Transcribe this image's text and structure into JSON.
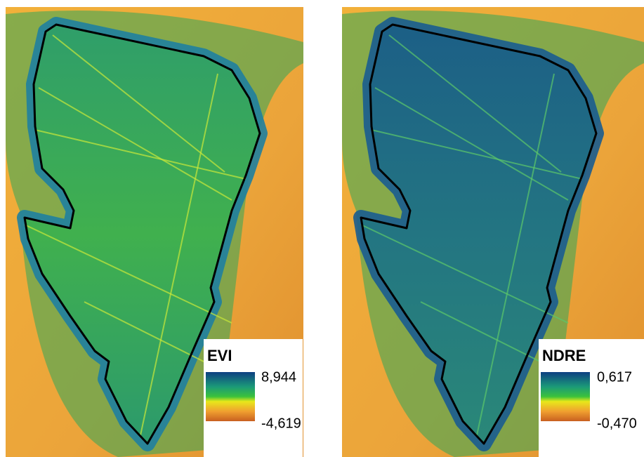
{
  "panels": [
    {
      "legend_title": "EVI",
      "legend_max": "8,944",
      "legend_min": "-4,619"
    },
    {
      "legend_title": "NDRE",
      "legend_max": "0,617",
      "legend_min": "-0,470"
    }
  ]
}
